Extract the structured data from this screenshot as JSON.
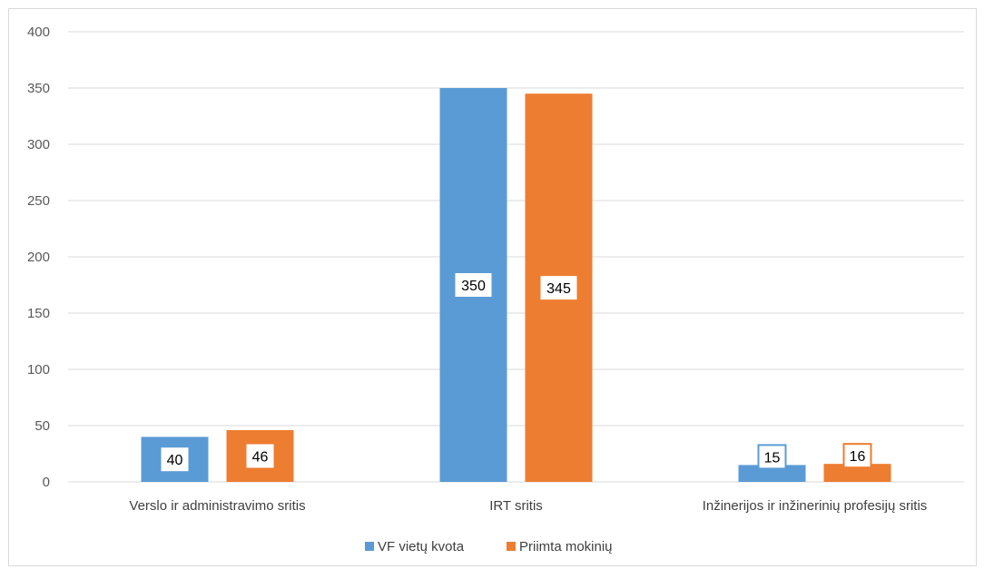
{
  "chart_data": {
    "type": "bar",
    "categories": [
      "Verslo ir administravimo sritis",
      "IRT sritis",
      "Inžinerijos ir inžinerinių profesijų sritis"
    ],
    "series": [
      {
        "name": "VF vietų kvota",
        "values": [
          40,
          350,
          15
        ],
        "color": "#5b9bd5"
      },
      {
        "name": "Priimta mokinių",
        "values": [
          46,
          345,
          16
        ],
        "color": "#ed7d31"
      }
    ],
    "ylim": [
      0,
      400
    ],
    "yticks": [
      0,
      50,
      100,
      150,
      200,
      250,
      300,
      350,
      400
    ],
    "grid": true,
    "legend_position": "bottom",
    "data_labels": true
  }
}
